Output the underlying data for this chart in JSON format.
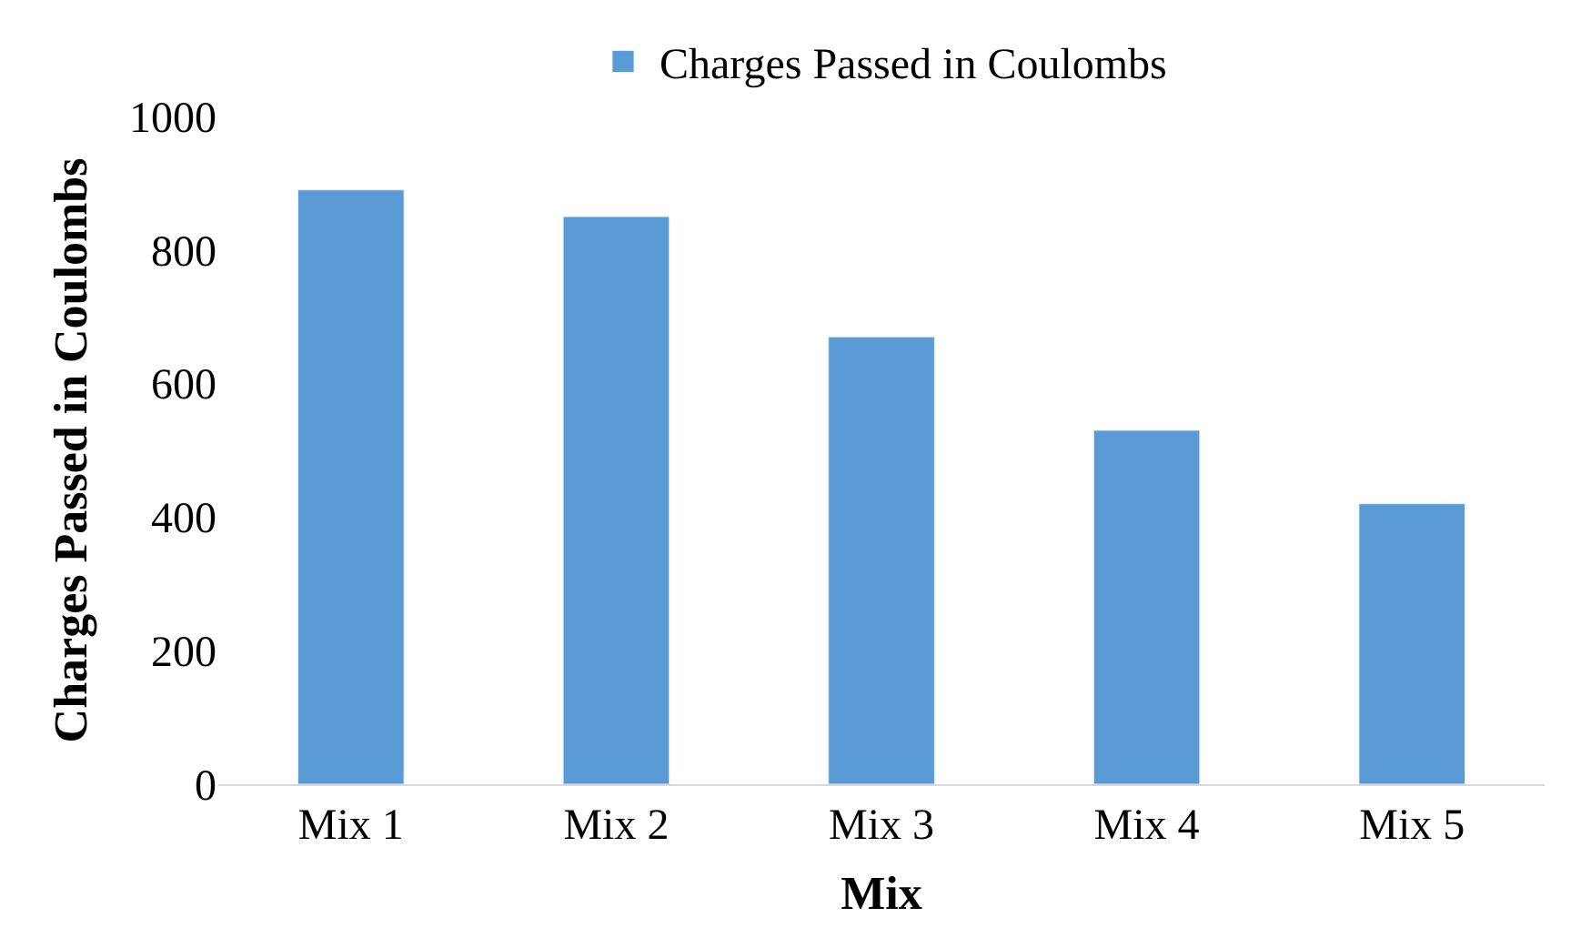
{
  "chart_data": {
    "type": "bar",
    "xlabel": "Mix",
    "ylabel": "Charges Passed in Coulombs",
    "categories": [
      "Mix 1",
      "Mix 2",
      "Mix 3",
      "Mix 4",
      "Mix 5"
    ],
    "series": [
      {
        "name": "Charges Passed in Coulombs",
        "color": "#5b9bd5",
        "values": [
          890,
          850,
          670,
          530,
          420
        ]
      }
    ],
    "ylim": [
      0,
      1000
    ],
    "yticks": [
      0,
      200,
      400,
      600,
      800,
      1000
    ],
    "legend": "top"
  }
}
